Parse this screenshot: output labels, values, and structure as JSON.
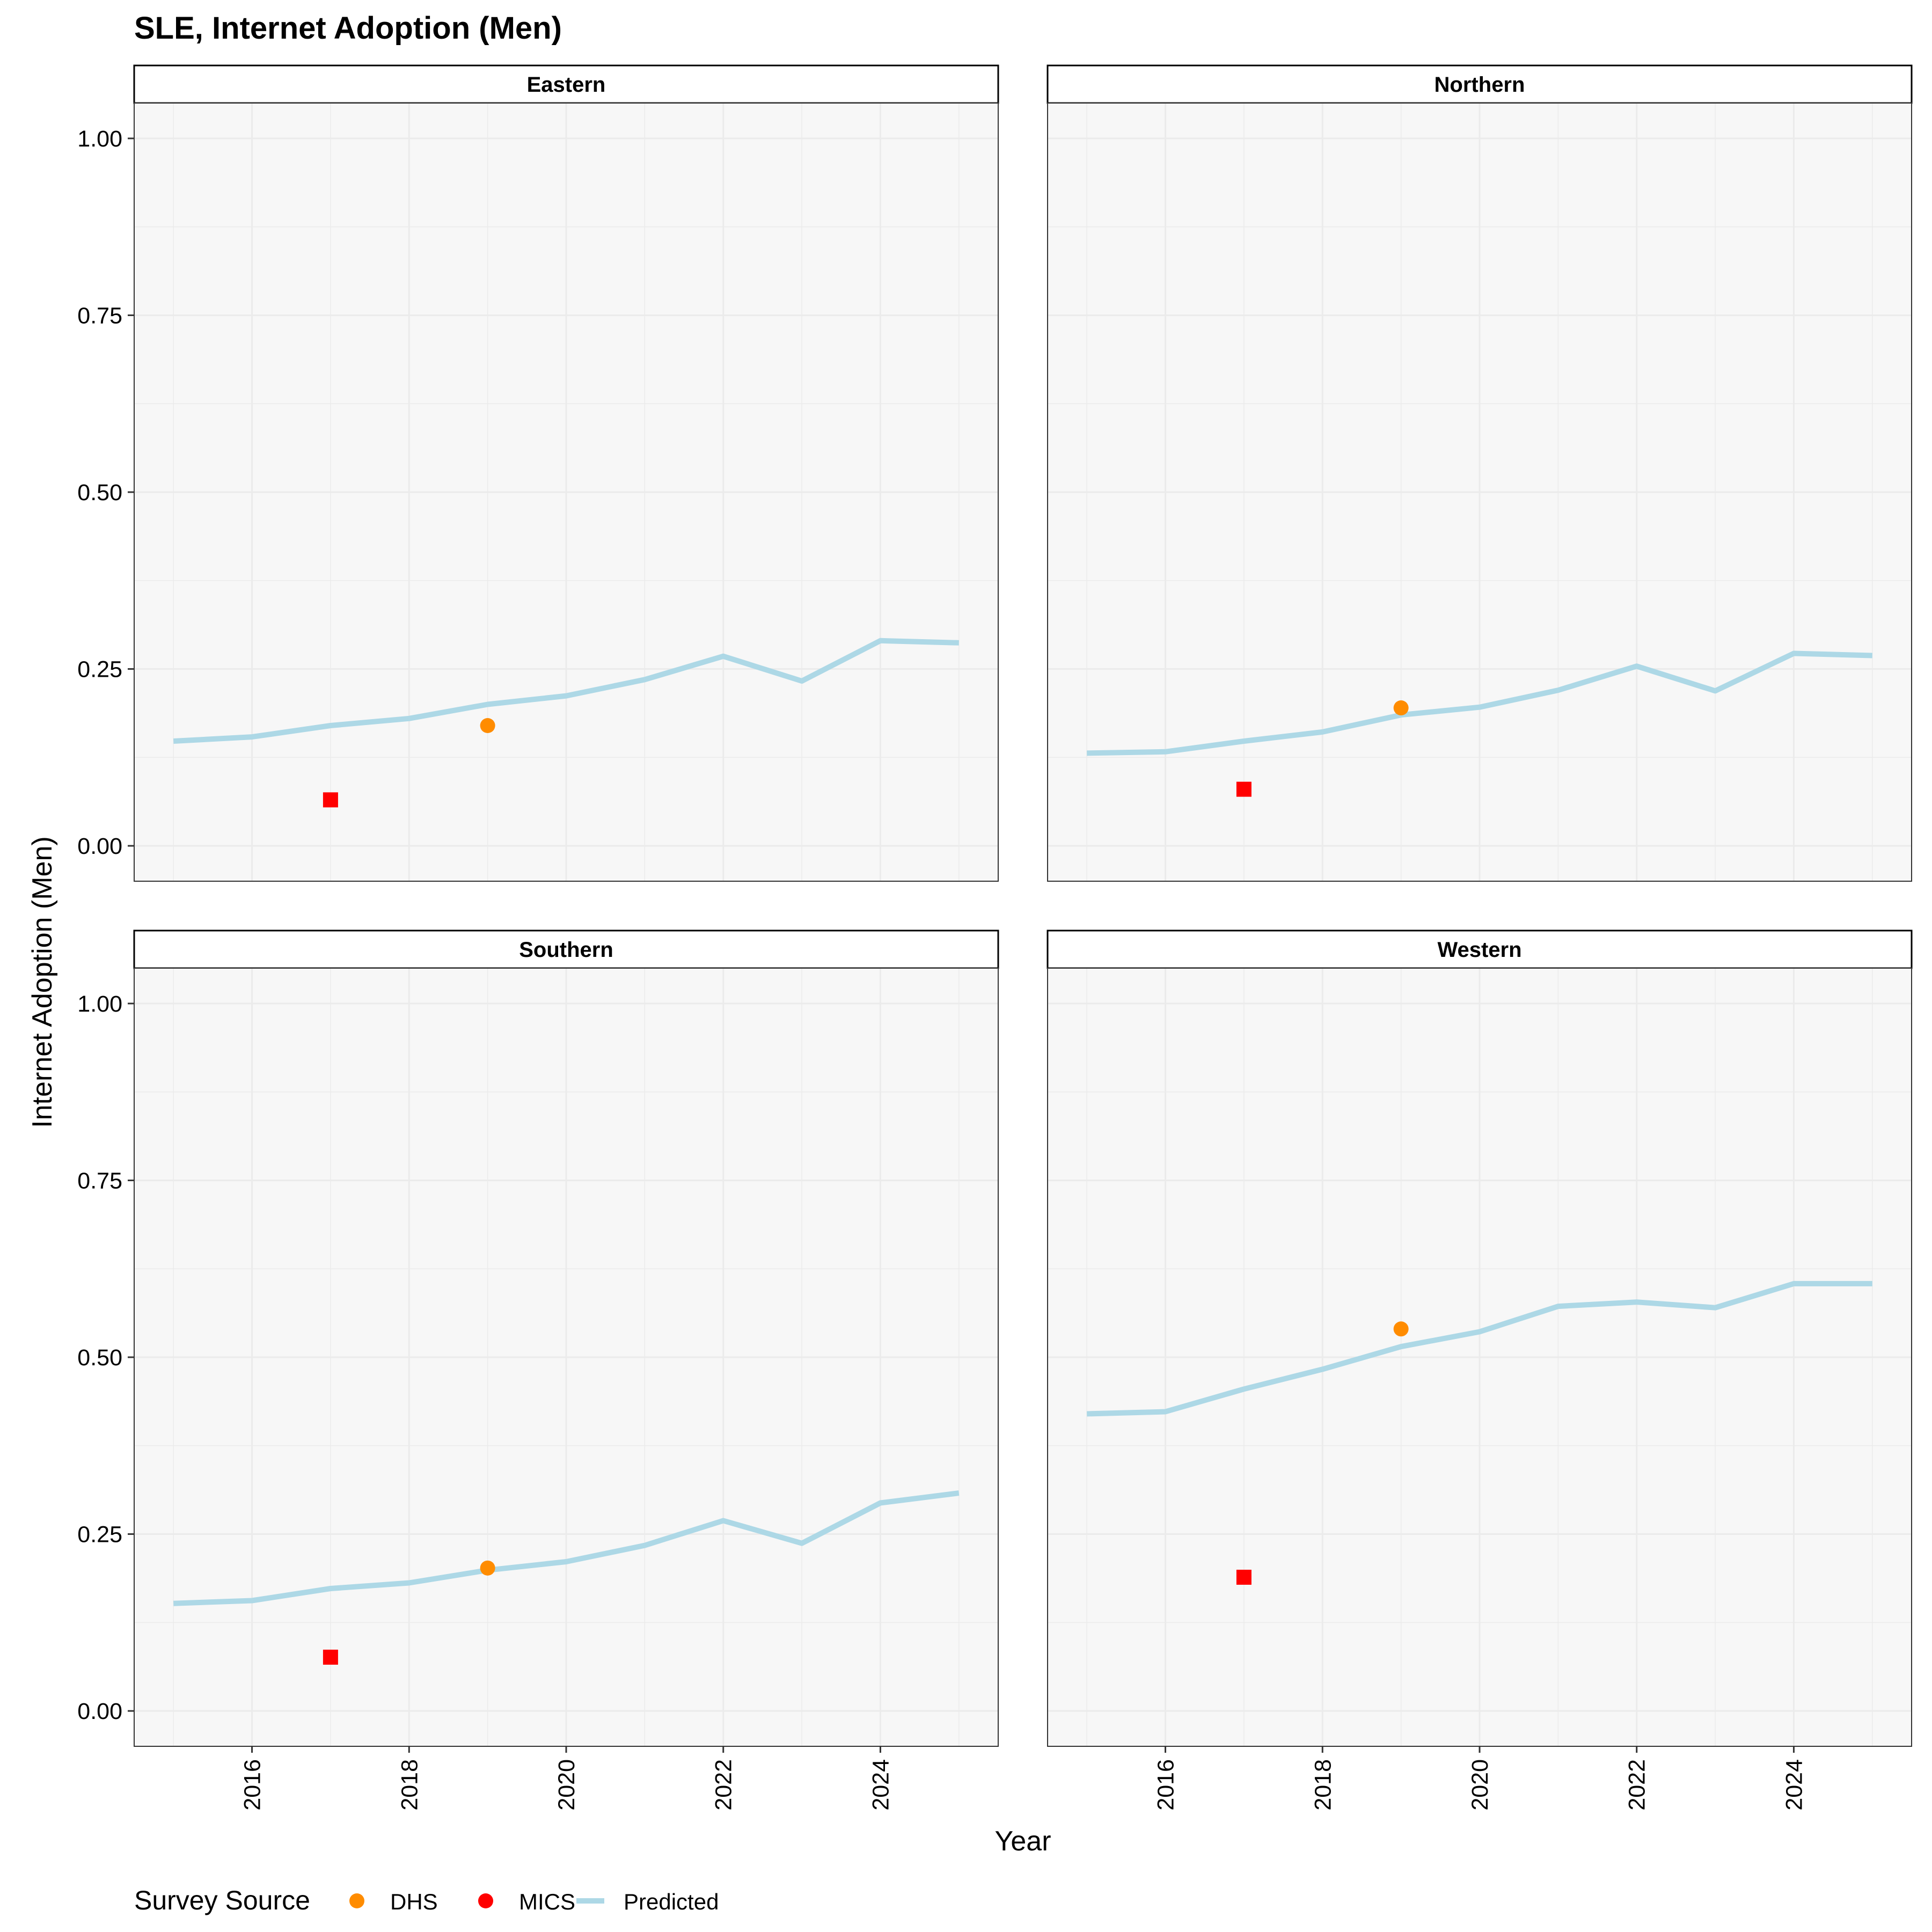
{
  "chart_data": {
    "type": "line",
    "title": "SLE, Internet Adoption (Men)",
    "xlabel": "Year",
    "ylabel": "Internet Adoption (Men)",
    "xlim": [
      2014.5,
      2025.5
    ],
    "ylim": [
      -0.05,
      1.05
    ],
    "x_ticks": [
      2016,
      2018,
      2020,
      2022,
      2024
    ],
    "y_ticks": [
      0,
      0.25,
      0.5,
      0.75,
      1
    ],
    "y_tick_labels": [
      "0.00",
      "0.25",
      "0.50",
      "0.75",
      "1.00"
    ],
    "grid": true,
    "legend": {
      "title": "Survey Source",
      "position": "bottom-left",
      "entries": [
        {
          "label": "DHS",
          "color": "#FF8C00",
          "shape": "circle"
        },
        {
          "label": "MICS",
          "color": "#FF0000",
          "shape": "circle"
        },
        {
          "label": "Predicted",
          "color": "#ADD8E6",
          "shape": "line"
        }
      ]
    },
    "colors": {
      "predicted": "#ADD8E6",
      "dhs": "#FF8C00",
      "mics": "#FF0000",
      "panel_background": "#F7F7F7",
      "grid": "#EBEBEB"
    },
    "panels": [
      {
        "name": "Eastern",
        "predicted": {
          "x": [
            2015,
            2016,
            2017,
            2018,
            2019,
            2020,
            2021,
            2022,
            2023,
            2024,
            2025
          ],
          "y": [
            0.148,
            0.154,
            0.17,
            0.18,
            0.2,
            0.212,
            0.235,
            0.268,
            0.233,
            0.29,
            0.287
          ]
        },
        "dhs": [
          {
            "x": 2019,
            "y": 0.17
          }
        ],
        "mics": [
          {
            "x": 2017,
            "y": 0.065
          }
        ]
      },
      {
        "name": "Northern",
        "predicted": {
          "x": [
            2015,
            2016,
            2017,
            2018,
            2019,
            2020,
            2021,
            2022,
            2023,
            2024,
            2025
          ],
          "y": [
            0.131,
            0.133,
            0.148,
            0.161,
            0.185,
            0.196,
            0.22,
            0.254,
            0.219,
            0.272,
            0.269
          ]
        },
        "dhs": [
          {
            "x": 2019,
            "y": 0.195
          }
        ],
        "mics": [
          {
            "x": 2017,
            "y": 0.08
          }
        ]
      },
      {
        "name": "Southern",
        "predicted": {
          "x": [
            2015,
            2016,
            2017,
            2018,
            2019,
            2020,
            2021,
            2022,
            2023,
            2024,
            2025
          ],
          "y": [
            0.152,
            0.156,
            0.173,
            0.181,
            0.199,
            0.211,
            0.234,
            0.269,
            0.237,
            0.294,
            0.308
          ]
        },
        "dhs": [
          {
            "x": 2019,
            "y": 0.202
          }
        ],
        "mics": [
          {
            "x": 2017,
            "y": 0.076
          }
        ]
      },
      {
        "name": "Western",
        "predicted": {
          "x": [
            2015,
            2016,
            2017,
            2018,
            2019,
            2020,
            2021,
            2022,
            2023,
            2024,
            2025
          ],
          "y": [
            0.42,
            0.423,
            0.455,
            0.483,
            0.515,
            0.536,
            0.572,
            0.578,
            0.57,
            0.604,
            0.604
          ]
        },
        "dhs": [
          {
            "x": 2019,
            "y": 0.54
          }
        ],
        "mics": [
          {
            "x": 2017,
            "y": 0.189
          }
        ]
      }
    ]
  }
}
